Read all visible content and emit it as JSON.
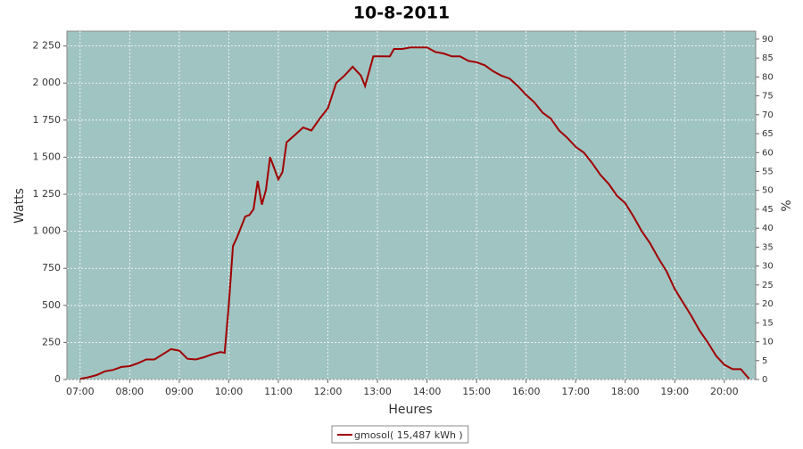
{
  "chart_data": {
    "type": "line",
    "title": "10-8-2011",
    "x_label": "Heures",
    "y_label": "Watts",
    "y2_label": "%",
    "x": [
      "07:00",
      "07:10",
      "07:20",
      "07:30",
      "07:40",
      "07:50",
      "08:00",
      "08:10",
      "08:20",
      "08:30",
      "08:40",
      "08:50",
      "09:00",
      "09:10",
      "09:20",
      "09:30",
      "09:40",
      "09:50",
      "09:55",
      "10:00",
      "10:05",
      "10:10",
      "10:20",
      "10:25",
      "10:30",
      "10:35",
      "10:40",
      "10:45",
      "10:50",
      "11:00",
      "11:05",
      "11:10",
      "11:20",
      "11:30",
      "11:40",
      "11:50",
      "12:00",
      "12:10",
      "12:20",
      "12:30",
      "12:40",
      "12:45",
      "12:55",
      "13:00",
      "13:15",
      "13:20",
      "13:30",
      "13:40",
      "13:50",
      "14:00",
      "14:10",
      "14:20",
      "14:30",
      "14:40",
      "14:50",
      "15:00",
      "15:10",
      "15:20",
      "15:30",
      "15:40",
      "15:50",
      "16:00",
      "16:10",
      "16:20",
      "16:30",
      "16:40",
      "16:50",
      "17:00",
      "17:10",
      "17:20",
      "17:30",
      "17:40",
      "17:50",
      "18:00",
      "18:10",
      "18:20",
      "18:30",
      "18:40",
      "18:50",
      "19:00",
      "19:10",
      "19:20",
      "19:30",
      "19:40",
      "19:50",
      "20:00",
      "20:10",
      "20:20",
      "20:30"
    ],
    "series": [
      {
        "name": "gmosol( 15,487 kWh )",
        "color": "#a00000",
        "values": [
          5,
          15,
          30,
          55,
          65,
          85,
          90,
          110,
          135,
          135,
          170,
          205,
          195,
          140,
          135,
          150,
          170,
          185,
          180,
          500,
          900,
          960,
          1100,
          1110,
          1150,
          1340,
          1180,
          1280,
          1500,
          1350,
          1400,
          1600,
          1650,
          1700,
          1680,
          1760,
          1830,
          2000,
          2050,
          2110,
          2050,
          1980,
          2180,
          2180,
          2180,
          2230,
          2230,
          2240,
          2240,
          2240,
          2210,
          2200,
          2180,
          2180,
          2150,
          2140,
          2120,
          2080,
          2050,
          2030,
          1980,
          1920,
          1870,
          1800,
          1760,
          1680,
          1630,
          1570,
          1530,
          1460,
          1380,
          1320,
          1240,
          1190,
          1100,
          1000,
          920,
          820,
          730,
          610,
          520,
          430,
          330,
          250,
          160,
          100,
          70,
          70,
          5
        ]
      }
    ],
    "xlim": [
      "06:44",
      "20:38"
    ],
    "xticks": [
      "07:00",
      "08:00",
      "09:00",
      "10:00",
      "11:00",
      "12:00",
      "13:00",
      "14:00",
      "15:00",
      "16:00",
      "17:00",
      "18:00",
      "19:00",
      "20:00"
    ],
    "ylim": [
      0,
      2350
    ],
    "yticks": [
      0,
      250,
      500,
      750,
      {
        "value": 1000,
        "label": "1 000"
      },
      {
        "value": 1250,
        "label": "1 250"
      },
      {
        "value": 1500,
        "label": "1 500"
      },
      {
        "value": 1750,
        "label": "1 750"
      },
      {
        "value": 2000,
        "label": "2 000"
      },
      {
        "value": 2250,
        "label": "2 250"
      }
    ],
    "y2lim": [
      0,
      92.1
    ],
    "y2ticks": [
      0,
      5,
      10,
      15,
      20,
      25,
      30,
      35,
      40,
      45,
      50,
      55,
      60,
      65,
      70,
      75,
      80,
      85,
      90
    ],
    "grid": true,
    "plot_background": "#9fc4c2",
    "legend": "bottom"
  }
}
